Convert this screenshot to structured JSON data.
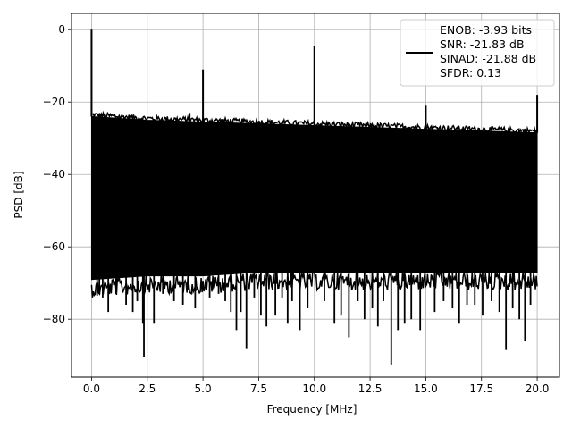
{
  "chart_data": {
    "type": "line",
    "xlabel": "Frequency [MHz]",
    "ylabel": "PSD [dB]",
    "xlim": [
      -0.9,
      21.0
    ],
    "ylim": [
      -96.0,
      4.5
    ],
    "x_ticks": [
      0.0,
      2.5,
      5.0,
      7.5,
      10.0,
      12.5,
      15.0,
      17.5,
      20.0
    ],
    "x_tick_labels": [
      "0.0",
      "2.5",
      "5.0",
      "7.5",
      "10.0",
      "12.5",
      "15.0",
      "17.5",
      "20.0"
    ],
    "y_ticks": [
      0,
      -20,
      -40,
      -60,
      -80
    ],
    "y_tick_labels": [
      "0",
      "−20",
      "−40",
      "−60",
      "−80"
    ],
    "grid": true,
    "legend_position": "top-right",
    "legend_lines": [
      "ENOB: -3.93 bits",
      "SNR: -21.83 dB",
      "SINAD: -21.88 dB",
      "SFDR: 0.13"
    ],
    "series": [
      {
        "color": "#000000",
        "noise_envelope": {
          "x": [
            0.0,
            2.5,
            5.0,
            7.5,
            10.0,
            12.5,
            15.0,
            17.5,
            20.0
          ],
          "upper": [
            -24,
            -25,
            -25.5,
            -26,
            -26.5,
            -27,
            -27.5,
            -28,
            -28.5
          ],
          "lower": [
            -69,
            -68,
            -68,
            -67,
            -67,
            -67,
            -67,
            -67,
            -67
          ]
        },
        "spikes": [
          {
            "x": 0.0,
            "y": 0.0
          },
          {
            "x": 5.0,
            "y": -11.0
          },
          {
            "x": 10.0,
            "y": -4.5
          },
          {
            "x": 15.0,
            "y": -21.0
          },
          {
            "x": 20.0,
            "y": -18.0
          },
          {
            "x": 4.4,
            "y": -23.0
          }
        ],
        "dips": [
          {
            "x": 0.25,
            "y": -73.5
          },
          {
            "x": 0.35,
            "y": -73
          },
          {
            "x": 0.5,
            "y": -74
          },
          {
            "x": 0.75,
            "y": -78
          },
          {
            "x": 1.1,
            "y": -73
          },
          {
            "x": 1.55,
            "y": -76
          },
          {
            "x": 1.85,
            "y": -78
          },
          {
            "x": 2.05,
            "y": -75
          },
          {
            "x": 2.3,
            "y": -81
          },
          {
            "x": 2.35,
            "y": -90.5
          },
          {
            "x": 2.8,
            "y": -81
          },
          {
            "x": 3.2,
            "y": -73
          },
          {
            "x": 3.7,
            "y": -75
          },
          {
            "x": 4.1,
            "y": -76
          },
          {
            "x": 4.35,
            "y": -72
          },
          {
            "x": 4.65,
            "y": -77
          },
          {
            "x": 5.3,
            "y": -74
          },
          {
            "x": 5.7,
            "y": -73
          },
          {
            "x": 6.0,
            "y": -75
          },
          {
            "x": 6.25,
            "y": -78
          },
          {
            "x": 6.5,
            "y": -83
          },
          {
            "x": 6.7,
            "y": -78
          },
          {
            "x": 6.95,
            "y": -88
          },
          {
            "x": 7.3,
            "y": -74
          },
          {
            "x": 7.6,
            "y": -79
          },
          {
            "x": 7.85,
            "y": -82
          },
          {
            "x": 8.25,
            "y": -79
          },
          {
            "x": 8.55,
            "y": -74
          },
          {
            "x": 8.8,
            "y": -81
          },
          {
            "x": 9.0,
            "y": -75
          },
          {
            "x": 9.35,
            "y": -83
          },
          {
            "x": 9.7,
            "y": -77
          },
          {
            "x": 10.45,
            "y": -75
          },
          {
            "x": 10.9,
            "y": -81
          },
          {
            "x": 11.2,
            "y": -79
          },
          {
            "x": 11.55,
            "y": -85
          },
          {
            "x": 11.95,
            "y": -75
          },
          {
            "x": 12.25,
            "y": -80
          },
          {
            "x": 12.6,
            "y": -77
          },
          {
            "x": 12.85,
            "y": -82
          },
          {
            "x": 13.1,
            "y": -75
          },
          {
            "x": 13.45,
            "y": -92.5
          },
          {
            "x": 13.75,
            "y": -83
          },
          {
            "x": 14.05,
            "y": -81
          },
          {
            "x": 14.35,
            "y": -80
          },
          {
            "x": 14.75,
            "y": -83
          },
          {
            "x": 15.4,
            "y": -78
          },
          {
            "x": 15.8,
            "y": -75
          },
          {
            "x": 16.2,
            "y": -77
          },
          {
            "x": 16.5,
            "y": -81
          },
          {
            "x": 16.85,
            "y": -76
          },
          {
            "x": 17.2,
            "y": -76
          },
          {
            "x": 17.55,
            "y": -79
          },
          {
            "x": 17.95,
            "y": -75
          },
          {
            "x": 18.3,
            "y": -78
          },
          {
            "x": 18.6,
            "y": -88.5
          },
          {
            "x": 18.9,
            "y": -77
          },
          {
            "x": 19.2,
            "y": -80
          },
          {
            "x": 19.45,
            "y": -86
          },
          {
            "x": 19.7,
            "y": -76
          }
        ]
      }
    ]
  }
}
